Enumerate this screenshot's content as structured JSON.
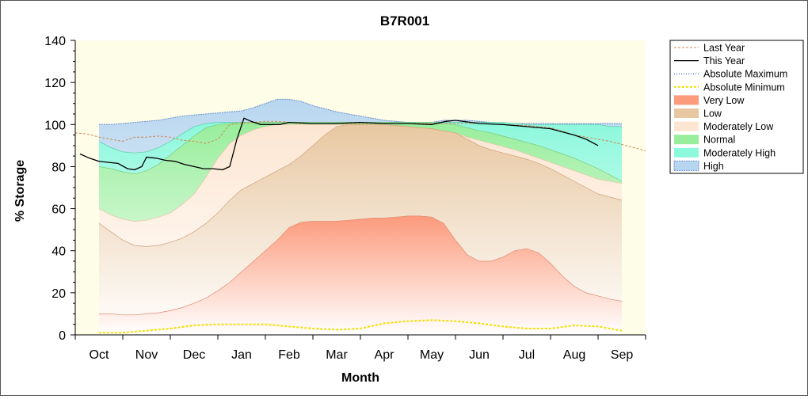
{
  "chart_data": {
    "type": "area",
    "title": "B7R001",
    "xlabel": "Month",
    "ylabel": "% Storage",
    "ylim": [
      0,
      140
    ],
    "yticks": [
      0,
      20,
      40,
      60,
      80,
      100,
      120,
      140
    ],
    "xlim": [
      -0.5,
      11.5
    ],
    "categories": [
      "Oct",
      "Nov",
      "Dec",
      "Jan",
      "Feb",
      "Mar",
      "Apr",
      "May",
      "Jun",
      "Jul",
      "Aug",
      "Sep"
    ],
    "legend_position": "right",
    "grid": false,
    "plot_background": "#fdfde8",
    "band_x": [
      0,
      0.25,
      0.5,
      0.75,
      1,
      1.25,
      1.5,
      1.75,
      2,
      2.25,
      2.5,
      2.75,
      3,
      3.25,
      3.5,
      3.75,
      4,
      4.25,
      4.5,
      4.75,
      5,
      5.25,
      5.5,
      5.75,
      6,
      6.25,
      6.5,
      6.75,
      7,
      7.25,
      7.5,
      7.75,
      8,
      8.25,
      8.5,
      8.75,
      9,
      9.25,
      9.5,
      9.75,
      10,
      10.25,
      10.5,
      10.75,
      11
    ],
    "bands": [
      {
        "name": "High",
        "color": "#b8d6ef",
        "edge": "#6a8fd0",
        "values": [
          100,
          100,
          100.5,
          101,
          101.5,
          102,
          103,
          104,
          104.5,
          105,
          105.5,
          106,
          106.5,
          108,
          110,
          112,
          112,
          111,
          109,
          107.5,
          106,
          105,
          104,
          103,
          102,
          101.5,
          101,
          101,
          101,
          102,
          102,
          102,
          101.5,
          101,
          100.5,
          100.5,
          100.5,
          100.5,
          100.5,
          100.5,
          100.5,
          100.5,
          100.5,
          100.5,
          100.5
        ]
      },
      {
        "name": "Moderately High",
        "color": "#8cf8dc",
        "edge": "#5cc9a8",
        "values": [
          92,
          89,
          87,
          86.5,
          87,
          89,
          92,
          95.5,
          99,
          100.5,
          101,
          101,
          101,
          101,
          101,
          101,
          101,
          101,
          101,
          101,
          101,
          101,
          101,
          101,
          101,
          101,
          101,
          101,
          101,
          101,
          101,
          101,
          101,
          101,
          101,
          100.5,
          100,
          100,
          100,
          100,
          100,
          100,
          100,
          99,
          99
        ]
      },
      {
        "name": "Normal",
        "color": "#98ee9c",
        "edge": "#7acb80",
        "values": [
          80,
          79,
          77.5,
          76.5,
          78,
          81,
          85.5,
          90,
          94.5,
          98.5,
          100,
          100.5,
          101,
          101,
          101,
          101,
          101,
          101,
          101,
          101,
          101,
          101,
          101,
          101,
          101,
          101,
          101,
          101,
          101,
          100.5,
          100,
          98.5,
          97,
          96,
          94.5,
          93,
          91.5,
          90,
          88,
          86,
          84,
          81.5,
          79,
          76,
          73
        ]
      },
      {
        "name": "Moderately Low",
        "color": "#fce6d2",
        "edge": "#e8c4a4",
        "values": [
          60,
          57,
          55,
          54,
          54.5,
          56,
          58,
          62,
          67,
          75,
          84,
          91,
          95,
          97.5,
          99,
          100,
          100,
          100,
          100,
          100,
          100,
          100,
          100,
          100,
          100,
          99.5,
          99,
          98.5,
          98,
          97,
          96,
          94,
          92.5,
          91,
          89.5,
          88,
          86,
          84,
          82,
          80,
          78,
          76,
          74,
          73,
          72
        ]
      },
      {
        "name": "Low",
        "color": "#e8c8a2",
        "edge": "#cfa07a",
        "values": [
          53,
          49,
          45,
          42.5,
          42,
          42.5,
          44,
          46,
          49,
          53,
          58,
          64,
          69,
          72,
          75,
          78,
          81,
          85,
          90,
          95,
          99,
          100,
          100,
          100,
          100,
          99.5,
          99,
          98.5,
          98,
          97,
          96,
          93,
          90,
          88,
          86.5,
          85,
          83.5,
          81.5,
          79,
          76,
          73,
          70,
          67,
          65.5,
          64
        ]
      },
      {
        "name": "Very Low",
        "color": "#fc9a7c",
        "edge": "#e08a70",
        "values": [
          10,
          10,
          9.5,
          9.5,
          10,
          10.5,
          11.5,
          13,
          15,
          17.5,
          21,
          25,
          30,
          35,
          40,
          45,
          51,
          53.5,
          54,
          54,
          54,
          54.5,
          55,
          55.5,
          55.5,
          56,
          56.5,
          56.5,
          56,
          53,
          45,
          38,
          35,
          35,
          37,
          40,
          41,
          39,
          34,
          28,
          23,
          20,
          18.5,
          17,
          16
        ]
      }
    ],
    "series": [
      {
        "name": "Last Year",
        "color": "#d08a52",
        "style": "dashed",
        "x": [
          -0.5,
          -0.25,
          0,
          0.25,
          0.5,
          0.75,
          1,
          1.25,
          1.5,
          1.75,
          2,
          2.25,
          2.5,
          2.75,
          3,
          3.25,
          3.5,
          3.75,
          4,
          4.25,
          4.5,
          4.75,
          5,
          5.5,
          6,
          6.5,
          7,
          7.5,
          8,
          8.5,
          9,
          9.5,
          10,
          10.25,
          10.5,
          10.75,
          11,
          11.25,
          11.5
        ],
        "values": [
          96,
          95.5,
          94,
          93,
          92,
          94,
          94,
          94.5,
          94,
          92.5,
          92,
          91,
          93,
          100,
          100.5,
          101,
          101.5,
          101.5,
          101,
          100.5,
          100.5,
          100.5,
          100.5,
          100.5,
          100.5,
          100.5,
          100.5,
          100.5,
          100.5,
          100,
          99.5,
          98.5,
          95,
          94,
          93,
          92,
          90.5,
          89,
          87.5
        ]
      },
      {
        "name": "This Year",
        "color": "#000000",
        "style": "solid",
        "x": [
          -0.4,
          -0.2,
          0,
          0.2,
          0.4,
          0.6,
          0.75,
          0.9,
          1,
          1.2,
          1.4,
          1.6,
          1.8,
          2,
          2.2,
          2.4,
          2.6,
          2.75,
          2.9,
          3.05,
          3.2,
          3.4,
          3.6,
          3.8,
          4,
          4.5,
          5,
          5.5,
          6,
          6.5,
          7,
          7.3,
          7.5,
          8,
          8.5,
          9,
          9.5,
          10,
          10.25,
          10.5
        ],
        "values": [
          86,
          84,
          82.5,
          82,
          81.5,
          79,
          78.5,
          80,
          84.5,
          84,
          83,
          82.5,
          81,
          80,
          79,
          79,
          78.5,
          80,
          93,
          103,
          101.5,
          100,
          100,
          100,
          101,
          100.5,
          100.5,
          101,
          100.5,
          100.5,
          100,
          101.5,
          102,
          100.5,
          100,
          99,
          98,
          95,
          93,
          90
        ]
      },
      {
        "name": "Absolute Maximum",
        "color": "#1e2ec8",
        "style": "dotted",
        "x": [],
        "values": []
      },
      {
        "name": "Absolute Minimum",
        "color": "#f0e000",
        "style": "dashed",
        "x": [
          0,
          0.5,
          1,
          1.5,
          2,
          2.5,
          3,
          3.5,
          4,
          4.5,
          5,
          5.5,
          6,
          6.5,
          7,
          7.5,
          8,
          8.5,
          9,
          9.5,
          10,
          10.5,
          11
        ],
        "values": [
          1,
          1,
          2,
          3,
          4.5,
          5,
          5,
          5,
          4,
          3,
          2.5,
          3,
          5.5,
          6.5,
          7,
          6.5,
          5.5,
          4,
          3,
          3,
          4.5,
          4,
          2
        ]
      }
    ],
    "legend": [
      "Last Year",
      "This Year",
      "Absolute Maximum",
      "Absolute Minimum",
      "Very Low",
      "Low",
      "Moderately Low",
      "Normal",
      "Moderately High",
      "High"
    ]
  }
}
